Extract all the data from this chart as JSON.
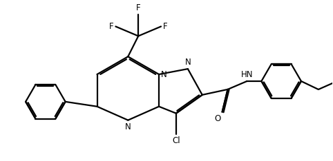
{
  "background_color": "#ffffff",
  "line_color": "#000000",
  "line_width": 1.6,
  "figsize": [
    4.82,
    2.34
  ],
  "dpi": 100,
  "xlim": [
    0,
    10
  ],
  "ylim": [
    0,
    4.85
  ]
}
